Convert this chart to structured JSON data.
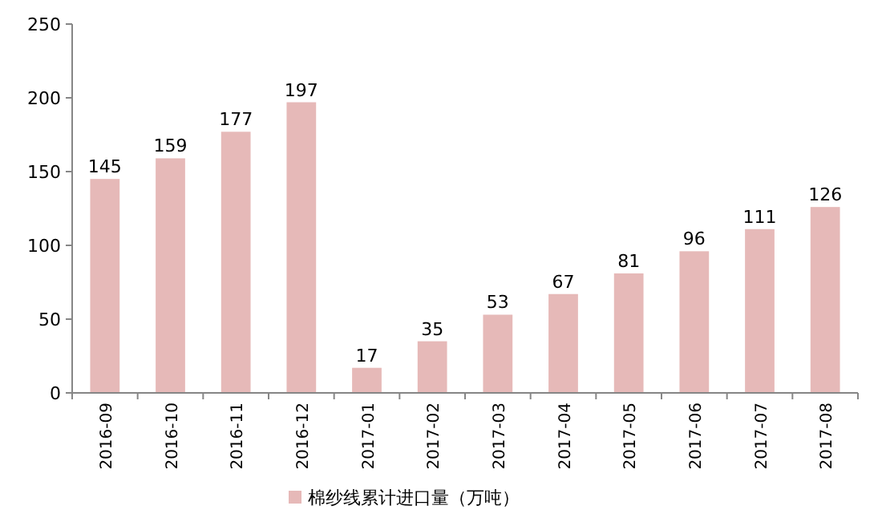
{
  "chart_data": {
    "type": "bar",
    "categories": [
      "2016-09",
      "2016-10",
      "2016-11",
      "2016-12",
      "2017-01",
      "2017-02",
      "2017-03",
      "2017-04",
      "2017-05",
      "2017-06",
      "2017-07",
      "2017-08"
    ],
    "series": [
      {
        "name": "棉纱线累计进口量（万吨）",
        "color": "#e6b9b8",
        "values": [
          145,
          159,
          177,
          197,
          17,
          35,
          53,
          67,
          81,
          96,
          111,
          126
        ]
      }
    ],
    "ylim": [
      0,
      250
    ],
    "yticks": [
      0,
      50,
      100,
      150,
      200,
      250
    ],
    "data_labels": true,
    "legend": "bottom",
    "grid": false
  }
}
